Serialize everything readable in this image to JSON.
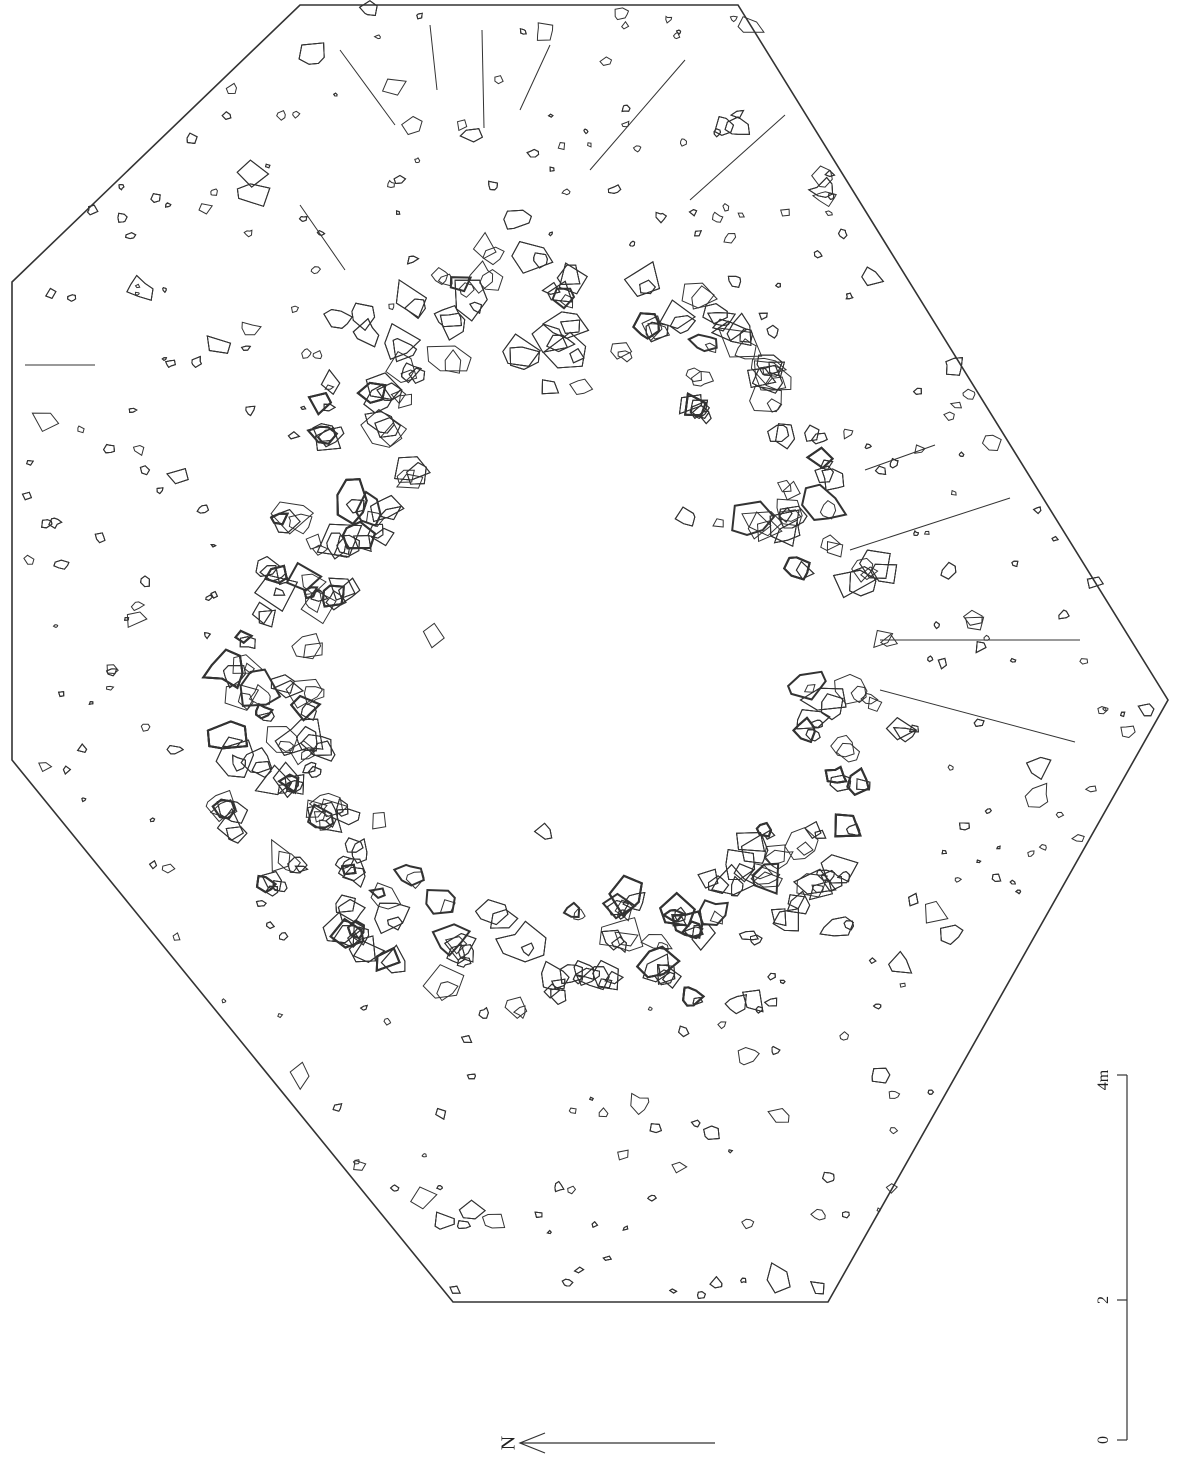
{
  "north_label": "N",
  "scale_bar": {
    "labels": [
      "0",
      "2",
      "4m"
    ]
  }
}
